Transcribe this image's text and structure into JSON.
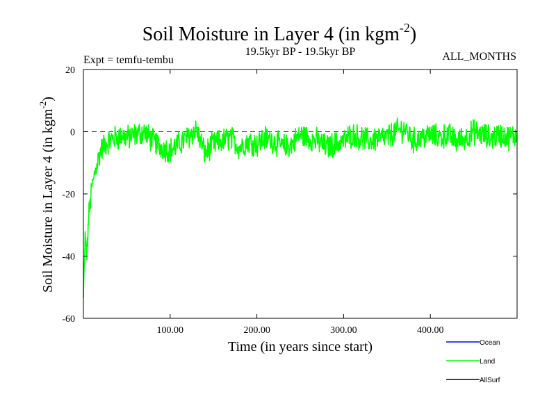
{
  "chart_data": {
    "type": "line",
    "title_main": "Soil Moisture in Layer 4 (in kgm",
    "title_sup": "-2",
    "title_close": ")",
    "subtitle_left": "Expt = temfu-tembu",
    "subtitle_center": "19.5kyr BP - 19.5kyr BP",
    "subtitle_right": "ALL_MONTHS",
    "xlabel": "Time (in years since start)",
    "ylabel_main": "Soil Moisture in Layer 4 (in kgm",
    "ylabel_sup": "-2",
    "ylabel_close": ")",
    "xlim": [
      0,
      500
    ],
    "ylim": [
      -60,
      20
    ],
    "xticks": [
      100,
      200,
      300,
      400
    ],
    "xtick_labels": [
      "100.00",
      "200.00",
      "300.00",
      "400.00"
    ],
    "yticks": [
      -60,
      -40,
      -20,
      0,
      20
    ],
    "ytick_labels": [
      "-60",
      "-40",
      "-20",
      "0",
      "20"
    ],
    "reference_line": 0,
    "legend": [
      {
        "name": "Ocean",
        "color": "#0000ff"
      },
      {
        "name": "Land",
        "color": "#00ff00"
      },
      {
        "name": "AllSurf",
        "color": "#000000"
      }
    ],
    "series": [
      {
        "name": "Land",
        "color": "#00ff00",
        "x": [
          0,
          2,
          4,
          6,
          8,
          10,
          12,
          14,
          16,
          18,
          20,
          25,
          30,
          35,
          40,
          45,
          50,
          60,
          70,
          80,
          90,
          100,
          110,
          120,
          130,
          140,
          150,
          160,
          170,
          180,
          190,
          200,
          210,
          220,
          230,
          240,
          250,
          260,
          270,
          280,
          290,
          300,
          310,
          320,
          330,
          340,
          350,
          360,
          370,
          380,
          390,
          400,
          410,
          420,
          430,
          440,
          450,
          460,
          470,
          480,
          490,
          500
        ],
        "values": [
          -54,
          -34,
          -40,
          -28,
          -22,
          -18,
          -15,
          -12,
          -10,
          -8,
          -6,
          -4,
          -3,
          -2,
          -2,
          -1,
          -2,
          -1,
          0,
          -3,
          -5,
          -6,
          -4,
          -2,
          1,
          -7,
          -4,
          -3,
          -2,
          -5,
          -3,
          -4,
          -2,
          -3,
          -5,
          -4,
          -1,
          -2,
          -3,
          -5,
          -4,
          -3,
          -1,
          -2,
          -3,
          -2,
          -2,
          0,
          1,
          -3,
          -2,
          -1,
          -2,
          -1,
          -3,
          -2,
          0,
          -1,
          -2,
          -1,
          -2,
          -1
        ]
      }
    ]
  }
}
